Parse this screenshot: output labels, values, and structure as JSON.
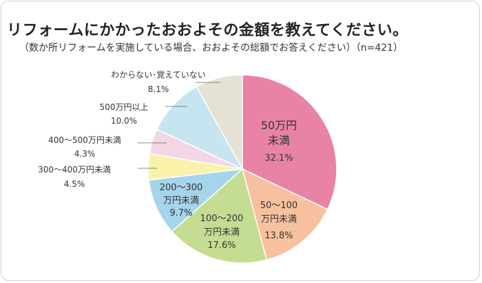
{
  "chart_data": {
    "type": "pie",
    "title": "リフォームにかかったおおよその金額を教えてください。",
    "subtitle": "（数か所リフォームを実施している場合、おおよその総額でお答えください）（n=421）",
    "slices": [
      {
        "label_lines": [
          "50万円",
          "未満"
        ],
        "value": 32.1,
        "value_label": "32.1%",
        "color": "#e983a5"
      },
      {
        "label_lines": [
          "50～100",
          "万円未満"
        ],
        "value": 13.8,
        "value_label": "13.8%",
        "color": "#f7c09e"
      },
      {
        "label_lines": [
          "100～200",
          "万円未満"
        ],
        "value": 17.6,
        "value_label": "17.6%",
        "color": "#c4dd92"
      },
      {
        "label_lines": [
          "200～300",
          "万円未満"
        ],
        "value": 9.7,
        "value_label": "9.7%",
        "color": "#a6d4ea"
      },
      {
        "label_lines": [
          "300～400万円未満"
        ],
        "value": 4.5,
        "value_label": "4.5%",
        "color": "#f8f2ab"
      },
      {
        "label_lines": [
          "400～500万円未満"
        ],
        "value": 4.3,
        "value_label": "4.3%",
        "color": "#f4d6e5"
      },
      {
        "label_lines": [
          "500万円以上"
        ],
        "value": 10.0,
        "value_label": "10.0%",
        "color": "#c6e5f0"
      },
      {
        "label_lines": [
          "わからない･覚えていない"
        ],
        "value": 8.1,
        "value_label": "8.1%",
        "color": "#e6e1d5"
      }
    ]
  }
}
